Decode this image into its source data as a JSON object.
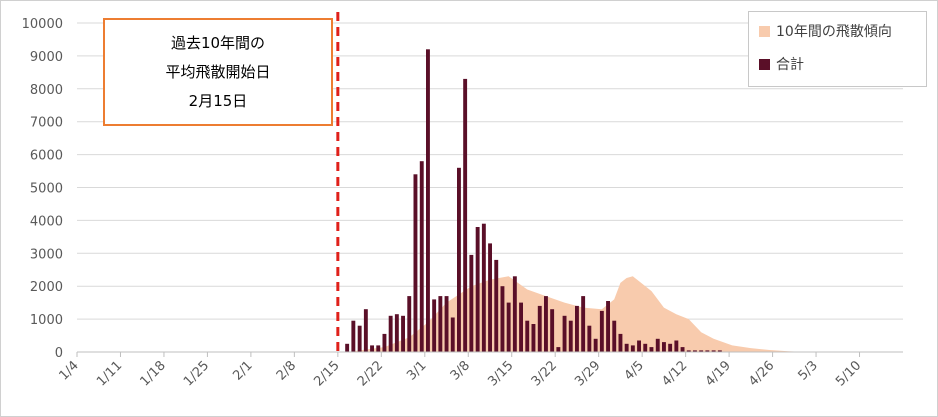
{
  "chart_data": {
    "type": "bar",
    "title": "",
    "xlabel": "",
    "ylabel": "",
    "ylim": [
      0,
      10000
    ],
    "yticks": [
      0,
      1000,
      2000,
      3000,
      4000,
      5000,
      6000,
      7000,
      8000,
      9000,
      10000
    ],
    "start_date": "2021-01-04",
    "end_date": "2021-05-16",
    "xticks": [
      "1/4",
      "1/11",
      "1/18",
      "1/25",
      "2/1",
      "2/8",
      "2/15",
      "2/22",
      "3/1",
      "3/8",
      "3/15",
      "3/22",
      "3/29",
      "4/5",
      "4/12",
      "4/19",
      "4/26",
      "5/3",
      "5/10"
    ],
    "grid": true,
    "legend_position": "top-right",
    "series": [
      {
        "name": "10年間の飛散傾向",
        "type": "area",
        "color": "#f8cbad",
        "x": [
          "2/16",
          "2/22",
          "2/26",
          "3/1",
          "3/4",
          "3/8",
          "3/11",
          "3/14",
          "3/17",
          "3/20",
          "3/23",
          "3/26",
          "3/29",
          "3/31",
          "4/1",
          "4/2",
          "4/3",
          "4/4",
          "4/6",
          "4/8",
          "4/10",
          "4/12",
          "4/14",
          "4/16",
          "4/19",
          "4/22",
          "4/25",
          "4/28",
          "5/1"
        ],
        "values": [
          0,
          150,
          450,
          900,
          1500,
          2000,
          2200,
          2300,
          1900,
          1700,
          1500,
          1350,
          1300,
          1600,
          2100,
          2250,
          2300,
          2150,
          1850,
          1350,
          1150,
          1000,
          600,
          400,
          200,
          120,
          60,
          20,
          0
        ]
      },
      {
        "name": "合計",
        "type": "bar",
        "color": "#5a0f28",
        "x": [
          "2/16",
          "2/17",
          "2/18",
          "2/19",
          "2/20",
          "2/21",
          "2/22",
          "2/23",
          "2/24",
          "2/25",
          "2/26",
          "2/27",
          "2/28",
          "3/1",
          "3/2",
          "3/3",
          "3/4",
          "3/5",
          "3/6",
          "3/7",
          "3/8",
          "3/9",
          "3/10",
          "3/11",
          "3/12",
          "3/13",
          "3/14",
          "3/15",
          "3/16",
          "3/17",
          "3/18",
          "3/19",
          "3/20",
          "3/21",
          "3/22",
          "3/23",
          "3/24",
          "3/25",
          "3/26",
          "3/27",
          "3/28",
          "3/29",
          "3/30",
          "3/31",
          "4/1",
          "4/2",
          "4/3",
          "4/4",
          "4/5",
          "4/6",
          "4/7",
          "4/8",
          "4/9",
          "4/10",
          "4/11",
          "4/12",
          "4/13",
          "4/14",
          "4/15",
          "4/16",
          "4/17"
        ],
        "values": [
          250,
          950,
          800,
          1300,
          200,
          200,
          550,
          1100,
          1150,
          1100,
          1700,
          5400,
          5800,
          9200,
          1600,
          1700,
          1700,
          1050,
          5600,
          8300,
          2950,
          3800,
          3900,
          3300,
          2800,
          2000,
          1500,
          2300,
          1500,
          950,
          850,
          1400,
          1700,
          1300,
          150,
          1100,
          950,
          1400,
          1700,
          800,
          400,
          1250,
          1550,
          950,
          550,
          250,
          200,
          350,
          250,
          150,
          400,
          300,
          250,
          350,
          150,
          50,
          50,
          50,
          50,
          50,
          50
        ]
      }
    ],
    "annotations": [
      {
        "lines": [
          "過去10年間の",
          "平均飛散開始日",
          "2月15日"
        ],
        "marker_date": "2/15",
        "marker_style": "dashed",
        "marker_color": "#e0201a"
      }
    ]
  }
}
